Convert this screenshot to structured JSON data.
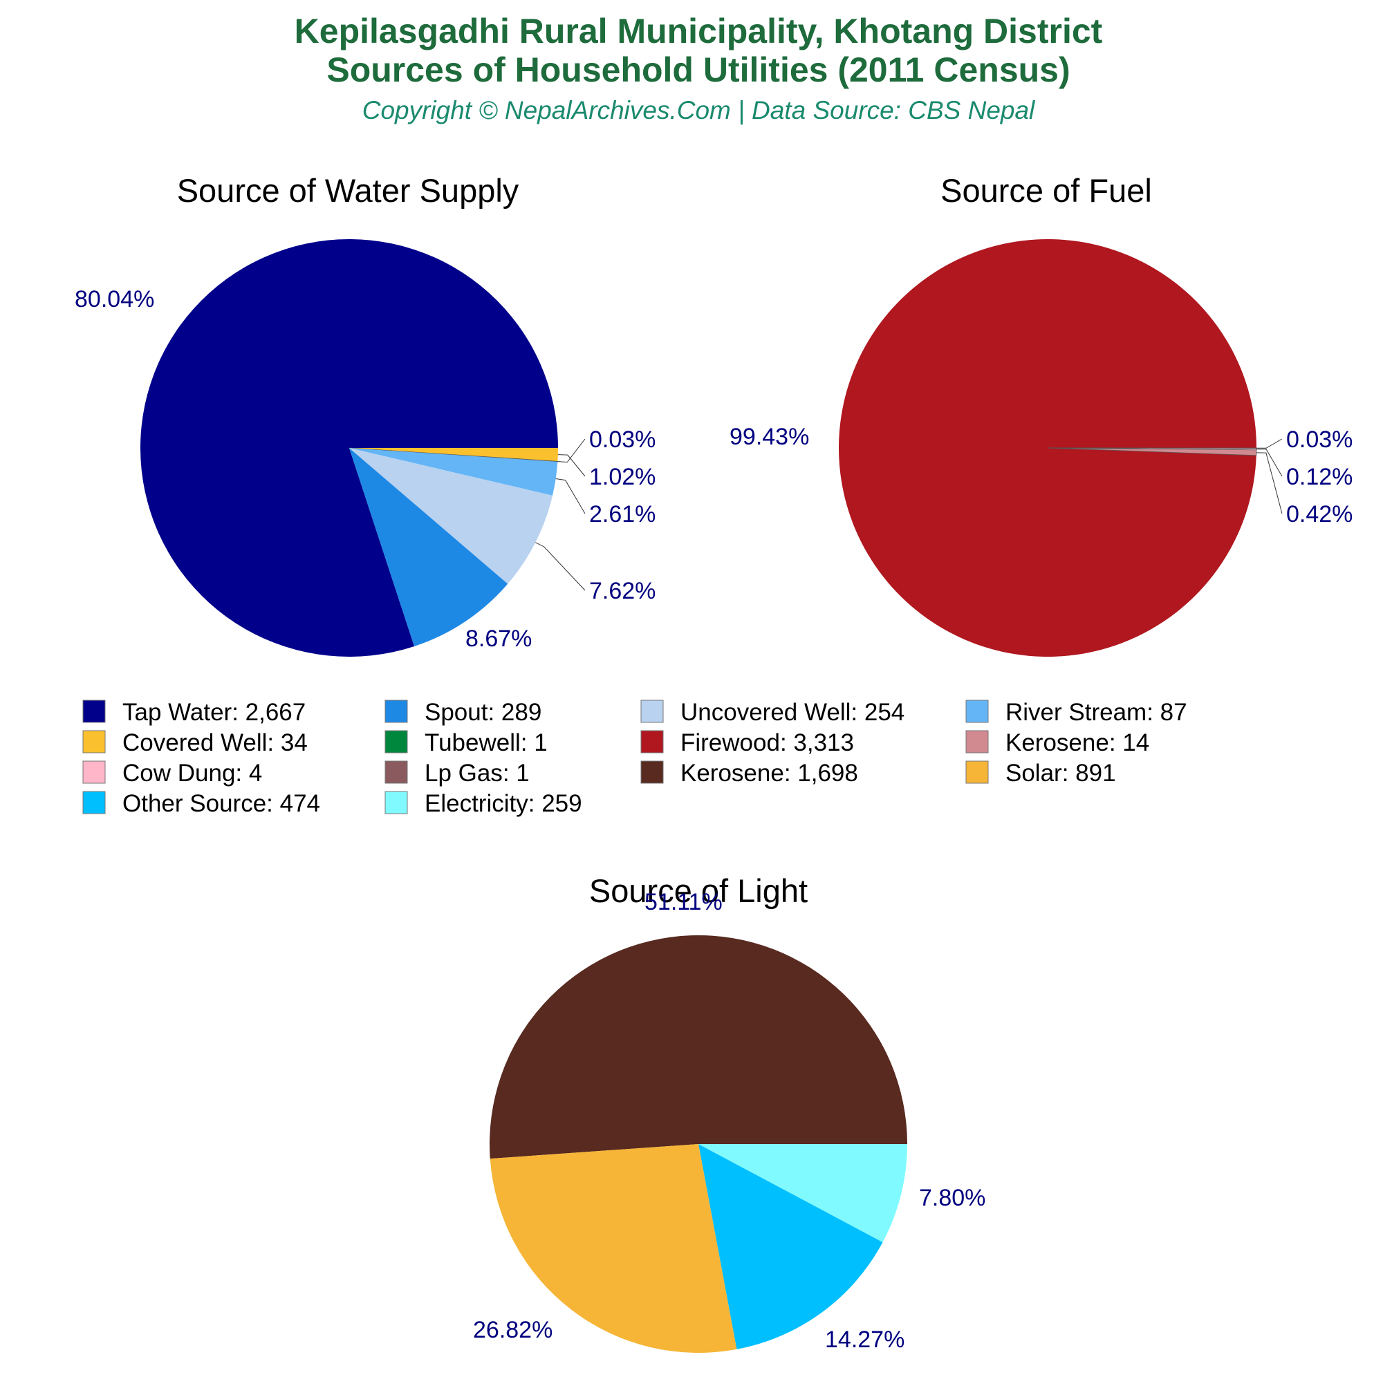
{
  "header": {
    "title_line1": "Kepilasgadhi Rural Municipality, Khotang District",
    "title_line2": "Sources of Household Utilities (2011 Census)",
    "subtitle": "Copyright © NepalArchives.Com | Data Source: CBS Nepal"
  },
  "colors": {
    "title": "#1e6b3c",
    "subtitle": "#1a8a6e",
    "labels": "#00007f"
  },
  "chart_data": [
    {
      "type": "pie",
      "title": "Source of Water Supply",
      "slices": [
        {
          "name": "Tap Water",
          "value": 2667,
          "percent_label": "80.04%",
          "color": "#00008b"
        },
        {
          "name": "Covered Well",
          "value": 34,
          "percent_label": "1.02%",
          "color": "#fbc02d"
        },
        {
          "name": "Tubewell",
          "value": 1,
          "percent_label": "0.03%",
          "color": "#00873e"
        },
        {
          "name": "River Stream",
          "value": 87,
          "percent_label": "2.61%",
          "color": "#64b5f6"
        },
        {
          "name": "Uncovered Well",
          "value": 254,
          "percent_label": "7.62%",
          "color": "#b8d2f0"
        },
        {
          "name": "Spout",
          "value": 289,
          "percent_label": "8.67%",
          "color": "#1e88e5"
        }
      ]
    },
    {
      "type": "pie",
      "title": "Source of Fuel",
      "slices": [
        {
          "name": "Firewood",
          "value": 3313,
          "percent_label": "99.43%",
          "color": "#b0171f"
        },
        {
          "name": "Lp Gas",
          "value": 1,
          "percent_label": "0.03%",
          "color": "#8b5a5f"
        },
        {
          "name": "Cow Dung",
          "value": 4,
          "percent_label": "0.12%",
          "color": "#ffb6c8"
        },
        {
          "name": "Kerosene",
          "value": 14,
          "percent_label": "0.42%",
          "color": "#d08a90"
        }
      ]
    },
    {
      "type": "pie",
      "title": "Source of Light",
      "slices": [
        {
          "name": "Kerosene",
          "value": 1698,
          "percent_label": "51.11%",
          "color": "#582a20"
        },
        {
          "name": "Electricity",
          "value": 259,
          "percent_label": "7.80%",
          "color": "#80faff"
        },
        {
          "name": "Other Source",
          "value": 474,
          "percent_label": "14.27%",
          "color": "#00bfff"
        },
        {
          "name": "Solar",
          "value": 891,
          "percent_label": "26.82%",
          "color": "#f6b537"
        }
      ]
    }
  ],
  "legend": [
    {
      "label": "Tap Water: 2,667",
      "color": "#00008b"
    },
    {
      "label": "Spout: 289",
      "color": "#1e88e5"
    },
    {
      "label": "Uncovered Well: 254",
      "color": "#b8d2f0"
    },
    {
      "label": "River Stream: 87",
      "color": "#64b5f6"
    },
    {
      "label": "Covered Well: 34",
      "color": "#fbc02d"
    },
    {
      "label": "Tubewell: 1",
      "color": "#00873e"
    },
    {
      "label": "Firewood: 3,313",
      "color": "#b0171f"
    },
    {
      "label": "Kerosene: 14",
      "color": "#d08a90"
    },
    {
      "label": "Cow Dung: 4",
      "color": "#ffb6c8"
    },
    {
      "label": "Lp Gas: 1",
      "color": "#8b5a5f"
    },
    {
      "label": "Kerosene: 1,698",
      "color": "#582a20"
    },
    {
      "label": "Solar: 891",
      "color": "#f6b537"
    },
    {
      "label": "Other Source: 474",
      "color": "#00bfff"
    },
    {
      "label": "Electricity: 259",
      "color": "#80faff"
    }
  ]
}
